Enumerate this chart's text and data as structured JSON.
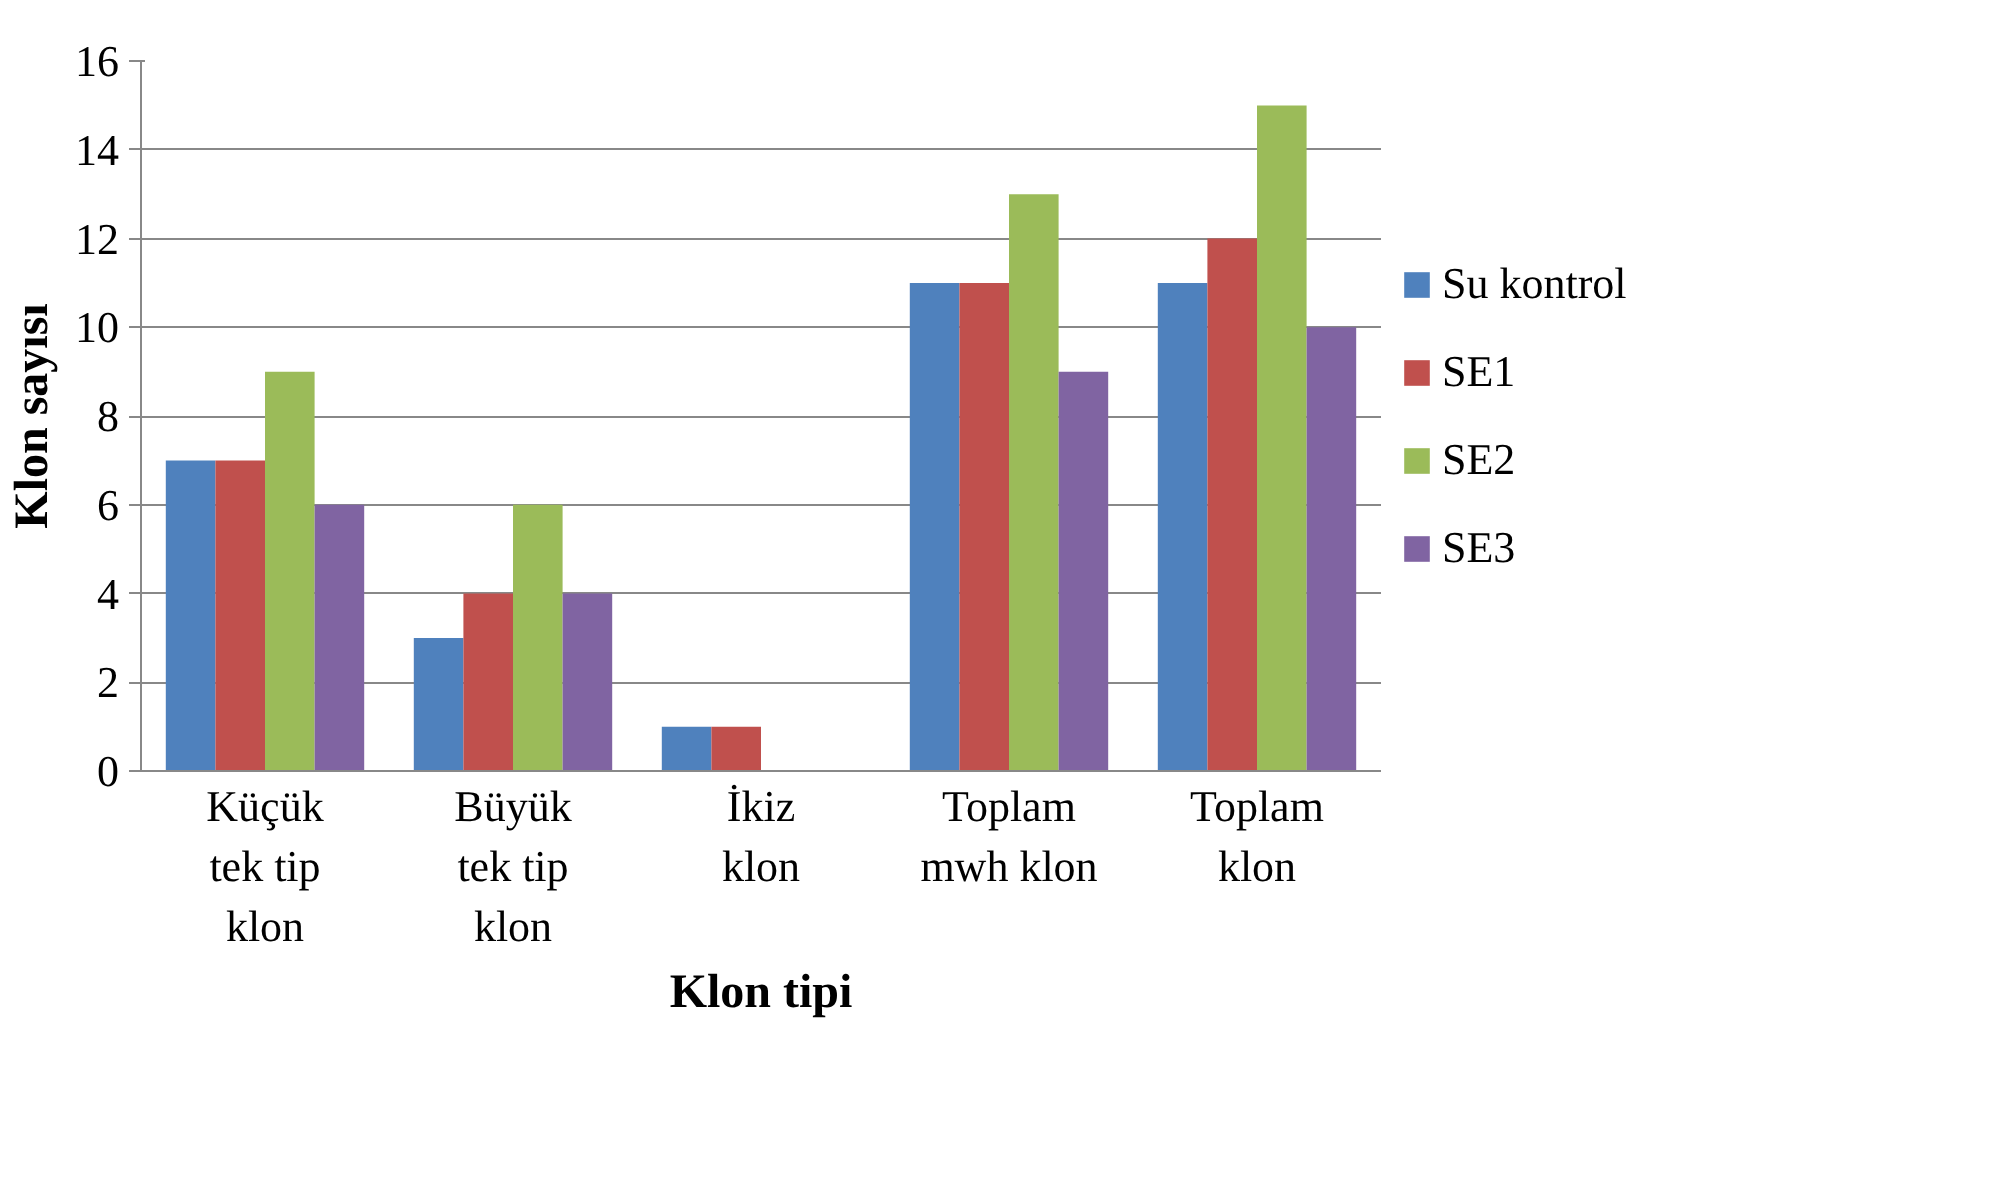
{
  "chart_data": {
    "type": "bar",
    "xlabel": "Klon tipi",
    "ylabel": "Klon sayısı",
    "categories": [
      "Küçük tek tip klon",
      "Büyük tek tip klon",
      "İkiz klon",
      "Toplam mwh klon",
      "Toplam klon"
    ],
    "series": [
      {
        "name": "Su kontrol",
        "color": "#4f81bd",
        "values": [
          7,
          3,
          1,
          11,
          11
        ]
      },
      {
        "name": "SE1",
        "color": "#c0504d",
        "values": [
          7,
          4,
          1,
          11,
          12
        ]
      },
      {
        "name": "SE2",
        "color": "#9bbb59",
        "values": [
          9,
          6,
          0,
          13,
          15
        ]
      },
      {
        "name": "SE3",
        "color": "#8064a2",
        "values": [
          6,
          4,
          0,
          9,
          10
        ]
      }
    ],
    "ylim": [
      0,
      16
    ],
    "yticks": [
      0,
      2,
      4,
      6,
      8,
      10,
      12,
      14,
      16
    ],
    "grid": "y",
    "legend": "right"
  }
}
